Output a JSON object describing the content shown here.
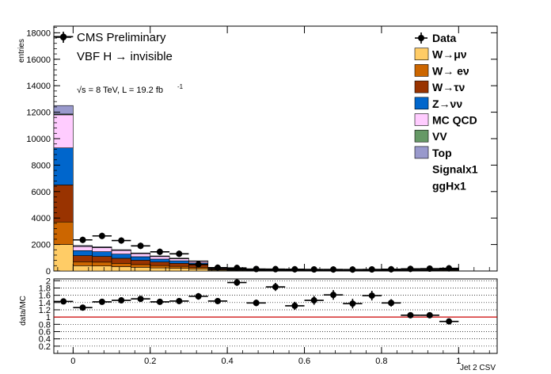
{
  "chart_data": [
    {
      "type": "bar",
      "stacked": true,
      "title_lines": [
        "CMS Preliminary",
        "VBF H → invisible",
        "√s = 8 TeV, L = 19.2 fb",
        "-1"
      ],
      "xlabel": "Jet 2 CSV",
      "ylabel": "entries",
      "xlim": [
        -0.05,
        1.1
      ],
      "ylim": [
        0,
        18500
      ],
      "x_ticks": [
        0,
        0.2,
        0.4,
        0.6,
        0.8,
        1
      ],
      "x_tick_labels": [
        "0",
        "0.2",
        "0.4",
        "0.6",
        "0.8",
        "1"
      ],
      "y_ticks": [
        0,
        2000,
        4000,
        6000,
        8000,
        10000,
        12000,
        14000,
        16000,
        18000
      ],
      "y_tick_labels": [
        "0",
        "2000",
        "4000",
        "6000",
        "8000",
        "10000",
        "12000",
        "14000",
        "16000",
        "18000"
      ],
      "bin_edges": [
        -0.05,
        0,
        0.05,
        0.1,
        0.15,
        0.2,
        0.25,
        0.3,
        0.35,
        0.4,
        0.45,
        0.5,
        0.55,
        0.6,
        0.65,
        0.7,
        0.75,
        0.8,
        0.85,
        0.9,
        0.95,
        1.0
      ],
      "stack_series": [
        {
          "name": "W→μν",
          "color": "#ffcc66",
          "values": [
            2000,
            400,
            380,
            330,
            280,
            230,
            200,
            160,
            60,
            40,
            30,
            25,
            22,
            20,
            18,
            17,
            18,
            20,
            25,
            30,
            40
          ]
        },
        {
          "name": "W→ eν",
          "color": "#cc6600",
          "values": [
            1700,
            300,
            290,
            250,
            210,
            180,
            150,
            120,
            40,
            25,
            18,
            14,
            12,
            11,
            10,
            10,
            11,
            12,
            15,
            18,
            22
          ]
        },
        {
          "name": "W→τν",
          "color": "#993300",
          "values": [
            2800,
            460,
            430,
            380,
            320,
            270,
            230,
            180,
            60,
            35,
            25,
            18,
            15,
            13,
            12,
            11,
            12,
            14,
            18,
            22,
            28
          ]
        },
        {
          "name": "Z→νν",
          "color": "#0066cc",
          "values": [
            2800,
            380,
            360,
            320,
            270,
            220,
            190,
            150,
            50,
            30,
            20,
            15,
            13,
            11,
            10,
            10,
            11,
            12,
            15,
            18,
            25
          ]
        },
        {
          "name": "MC QCD",
          "color": "#ffccff",
          "values": [
            2500,
            310,
            300,
            270,
            230,
            190,
            160,
            120,
            40,
            25,
            15,
            12,
            10,
            9,
            8,
            8,
            9,
            10,
            12,
            14,
            18
          ]
        },
        {
          "name": "VV",
          "color": "#669966",
          "values": [
            60,
            12,
            11,
            10,
            9,
            8,
            7,
            6,
            3,
            2,
            2,
            1,
            1,
            1,
            1,
            1,
            1,
            1,
            1,
            2,
            2
          ]
        },
        {
          "name": "Top",
          "color": "#9999cc",
          "values": [
            640,
            60,
            55,
            50,
            45,
            40,
            35,
            30,
            15,
            10,
            8,
            6,
            5,
            5,
            5,
            5,
            6,
            8,
            10,
            12,
            15
          ]
        }
      ],
      "legend_labels": [
        "Data",
        "Signalx1",
        "ggHx1"
      ],
      "data_points": {
        "name": "Data",
        "x": [
          -0.025,
          0.025,
          0.075,
          0.125,
          0.175,
          0.225,
          0.275,
          0.325,
          0.375,
          0.425,
          0.475,
          0.525,
          0.575,
          0.625,
          0.675,
          0.725,
          0.775,
          0.825,
          0.875,
          0.925,
          0.975
        ],
        "y": [
          17700,
          2350,
          2650,
          2300,
          1900,
          1450,
          1300,
          500,
          250,
          230,
          150,
          140,
          130,
          120,
          115,
          110,
          120,
          130,
          160,
          180,
          200
        ],
        "xerr": 0.025
      },
      "legend_position": "top-right",
      "grid": false
    },
    {
      "type": "scatter",
      "ylabel": "data/MC",
      "ylim": [
        0,
        2.05
      ],
      "xlim": [
        -0.05,
        1.1
      ],
      "y_ticks": [
        0.2,
        0.4,
        0.6,
        0.8,
        1,
        1.2,
        1.4,
        1.6,
        1.8,
        2
      ],
      "y_tick_labels": [
        "0.2",
        "0.4",
        "0.6",
        "0.8",
        "1",
        "1.2",
        "1.4",
        "1.6",
        "1.8",
        "2"
      ],
      "x_ticks": [
        0,
        0.2,
        0.4,
        0.6,
        0.8,
        1
      ],
      "x_tick_labels": [
        "0",
        "0.2",
        "0.4",
        "0.6",
        "0.8",
        "1"
      ],
      "reference_line": 1,
      "reference_line_color": "#cc0000",
      "grid": true,
      "x": [
        -0.025,
        0.025,
        0.075,
        0.125,
        0.175,
        0.225,
        0.275,
        0.325,
        0.375,
        0.425,
        0.475,
        0.525,
        0.575,
        0.625,
        0.675,
        0.725,
        0.775,
        0.825,
        0.875,
        0.925,
        0.975
      ],
      "y": [
        1.43,
        1.26,
        1.42,
        1.46,
        1.5,
        1.42,
        1.44,
        1.57,
        1.44,
        1.95,
        1.39,
        1.83,
        1.31,
        1.46,
        1.61,
        1.37,
        1.59,
        1.39,
        1.05,
        1.05,
        0.88
      ],
      "yerr": [
        0.03,
        0.04,
        0.04,
        0.04,
        0.05,
        0.05,
        0.05,
        0.07,
        0.05,
        0.07,
        0.07,
        0.09,
        0.09,
        0.1,
        0.11,
        0.11,
        0.11,
        0.08,
        0.05,
        0.05,
        0.04
      ],
      "xerr": 0.025
    }
  ]
}
